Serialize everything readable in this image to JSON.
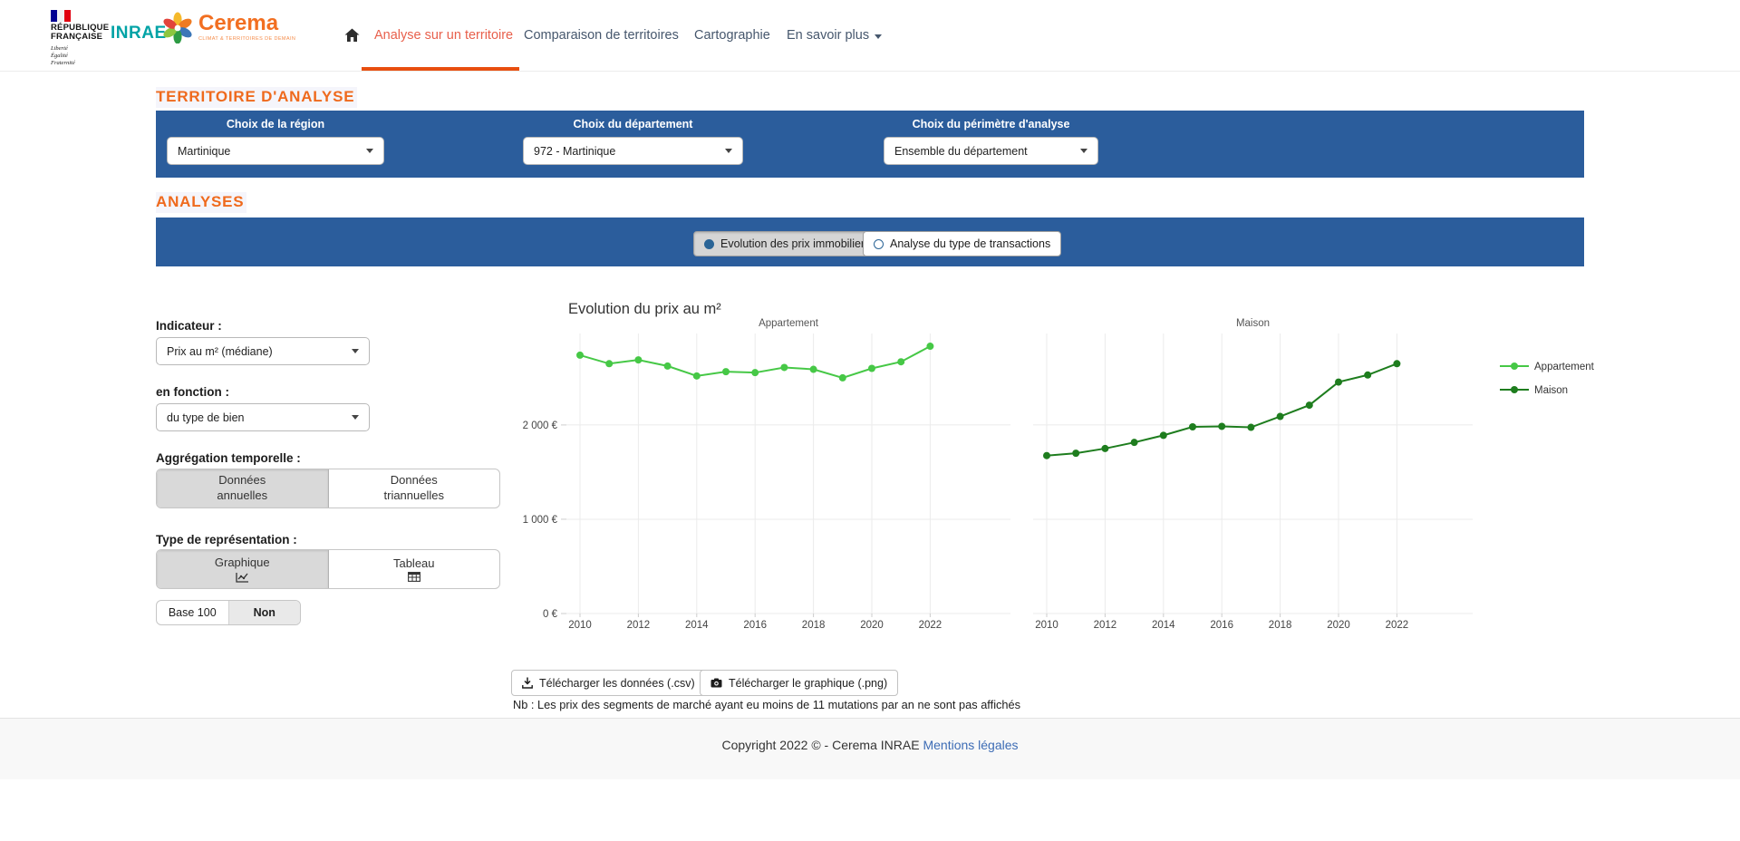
{
  "header": {
    "logos": {
      "republique": {
        "line1": "RÉPUBLIQUE",
        "line2": "FRANÇAISE",
        "motto": [
          "Liberté",
          "Égalité",
          "Fraternité"
        ]
      },
      "inrae": {
        "text": "INRAE"
      },
      "cerema": {
        "name": "Cerema",
        "tagline": "CLIMAT & TERRITOIRES DE DEMAIN"
      }
    },
    "nav": [
      {
        "label": "Analyse sur un territoire",
        "active": true
      },
      {
        "label": "Comparaison de territoires",
        "active": false
      },
      {
        "label": "Cartographie",
        "active": false
      },
      {
        "label": "En savoir plus",
        "active": false
      }
    ]
  },
  "territoire": {
    "heading": "TERRITOIRE D'ANALYSE",
    "region": {
      "label": "Choix de la région",
      "value": "Martinique"
    },
    "departement": {
      "label": "Choix du département",
      "value": "972 - Martinique"
    },
    "perimetre": {
      "label": "Choix du périmètre d'analyse",
      "value": "Ensemble du département"
    }
  },
  "analyses": {
    "heading": "ANALYSES",
    "options": [
      {
        "label": "Evolution des prix immobilier",
        "selected": true
      },
      {
        "label": "Analyse du type de transactions",
        "selected": false
      }
    ]
  },
  "sidebar": {
    "indicateur": {
      "label": "Indicateur :",
      "value": "Prix au m² (médiane)"
    },
    "fonction": {
      "label": "en fonction :",
      "value": "du type de bien"
    },
    "aggregation": {
      "label": "Aggrégation temporelle :",
      "options": [
        {
          "line1": "Données",
          "line2": "annuelles",
          "selected": true
        },
        {
          "line1": "Données",
          "line2": "triannuelles",
          "selected": false
        }
      ]
    },
    "representation": {
      "label": "Type de représentation :",
      "options": [
        {
          "label": "Graphique",
          "selected": true
        },
        {
          "label": "Tableau",
          "selected": false
        }
      ]
    },
    "base100": {
      "label": "Base 100",
      "value": "Non"
    }
  },
  "chart_data": {
    "type": "line",
    "title": "Evolution du prix au m²",
    "facets": [
      "Appartement",
      "Maison"
    ],
    "x": [
      2010,
      2011,
      2012,
      2013,
      2014,
      2015,
      2016,
      2017,
      2018,
      2019,
      2020,
      2021,
      2022
    ],
    "series": [
      {
        "name": "Appartement",
        "facet": "Appartement",
        "color": "#46c846",
        "values": [
          2740,
          2650,
          2690,
          2625,
          2520,
          2565,
          2555,
          2610,
          2590,
          2500,
          2600,
          2670,
          2835
        ]
      },
      {
        "name": "Maison",
        "facet": "Maison",
        "color": "#1e7d1e",
        "values": [
          1675,
          1700,
          1750,
          1815,
          1890,
          1980,
          1985,
          1975,
          2090,
          2210,
          2455,
          2530,
          2650
        ]
      }
    ],
    "xlabel": "",
    "ylabel": "",
    "ytick_values": [
      0,
      1000,
      2000
    ],
    "ytick_labels": [
      "0 €",
      "1 000 €",
      "2 000 €"
    ],
    "xticks": [
      2010,
      2012,
      2014,
      2016,
      2018,
      2020,
      2022
    ],
    "ylim": [
      0,
      2970
    ],
    "grid": true,
    "legend_position": "right"
  },
  "downloads": {
    "csv_label": "Télécharger les données (.csv)",
    "png_label": "Télécharger le graphique (.png)",
    "note": "Nb : Les prix des segments de marché ayant eu moins de 11 mutations par an ne sont pas affichés"
  },
  "footer": {
    "copyright": "Copyright 2022 © - Cerema INRAE",
    "link": "Mentions légales"
  }
}
